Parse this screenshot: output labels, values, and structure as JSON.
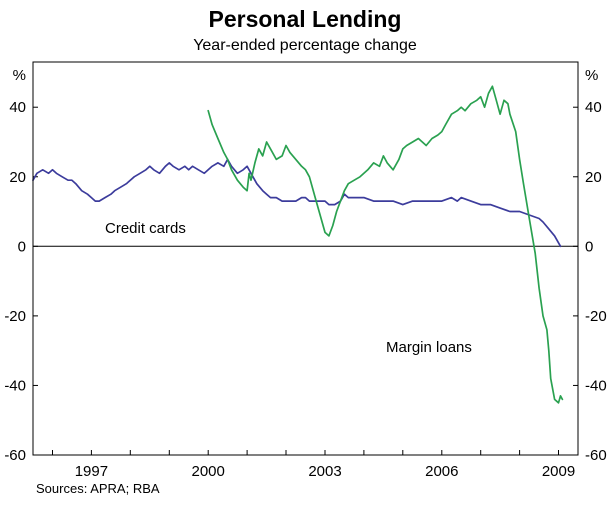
{
  "title": "Personal Lending",
  "subtitle": "Year-ended percentage change",
  "sources": "Sources: APRA; RBA",
  "chart_data": {
    "type": "line",
    "title": "Personal Lending",
    "subtitle": "Year-ended percentage change",
    "unit": "%",
    "xlim": [
      1995.5,
      2009.5
    ],
    "ylim": [
      -60,
      53
    ],
    "yticks": [
      -60,
      -40,
      -20,
      0,
      20,
      40
    ],
    "xticks": [
      1997,
      2000,
      2003,
      2006,
      2009
    ],
    "grid": false,
    "zero_line": true,
    "legend_position": "inline-annotations",
    "series": [
      {
        "id": "credit-cards",
        "label": "Credit cards",
        "color": "#3c3c9c",
        "points": [
          [
            1995.5,
            19
          ],
          [
            1995.6,
            21
          ],
          [
            1995.75,
            22
          ],
          [
            1995.9,
            21
          ],
          [
            1996.0,
            22
          ],
          [
            1996.1,
            21
          ],
          [
            1996.25,
            20
          ],
          [
            1996.4,
            19
          ],
          [
            1996.5,
            19
          ],
          [
            1996.6,
            18
          ],
          [
            1996.75,
            16
          ],
          [
            1996.9,
            15
          ],
          [
            1997.0,
            14
          ],
          [
            1997.1,
            13
          ],
          [
            1997.2,
            13
          ],
          [
            1997.35,
            14
          ],
          [
            1997.5,
            15
          ],
          [
            1997.6,
            16
          ],
          [
            1997.75,
            17
          ],
          [
            1997.9,
            18
          ],
          [
            1998.0,
            19
          ],
          [
            1998.1,
            20
          ],
          [
            1998.25,
            21
          ],
          [
            1998.4,
            22
          ],
          [
            1998.5,
            23
          ],
          [
            1998.6,
            22
          ],
          [
            1998.75,
            21
          ],
          [
            1998.9,
            23
          ],
          [
            1999.0,
            24
          ],
          [
            1999.1,
            23
          ],
          [
            1999.25,
            22
          ],
          [
            1999.4,
            23
          ],
          [
            1999.5,
            22
          ],
          [
            1999.6,
            23
          ],
          [
            1999.75,
            22
          ],
          [
            1999.9,
            21
          ],
          [
            2000.0,
            22
          ],
          [
            2000.1,
            23
          ],
          [
            2000.25,
            24
          ],
          [
            2000.4,
            23
          ],
          [
            2000.5,
            25
          ],
          [
            2000.6,
            23
          ],
          [
            2000.75,
            21
          ],
          [
            2000.9,
            22
          ],
          [
            2001.0,
            23
          ],
          [
            2001.1,
            21
          ],
          [
            2001.25,
            18
          ],
          [
            2001.4,
            16
          ],
          [
            2001.5,
            15
          ],
          [
            2001.6,
            14
          ],
          [
            2001.75,
            14
          ],
          [
            2001.9,
            13
          ],
          [
            2002.0,
            13
          ],
          [
            2002.25,
            13
          ],
          [
            2002.4,
            14
          ],
          [
            2002.5,
            14
          ],
          [
            2002.6,
            13
          ],
          [
            2002.75,
            13
          ],
          [
            2003.0,
            13
          ],
          [
            2003.1,
            12
          ],
          [
            2003.25,
            12
          ],
          [
            2003.4,
            13
          ],
          [
            2003.5,
            15
          ],
          [
            2003.6,
            14
          ],
          [
            2003.75,
            14
          ],
          [
            2004.0,
            14
          ],
          [
            2004.25,
            13
          ],
          [
            2004.5,
            13
          ],
          [
            2004.75,
            13
          ],
          [
            2005.0,
            12
          ],
          [
            2005.25,
            13
          ],
          [
            2005.5,
            13
          ],
          [
            2005.75,
            13
          ],
          [
            2006.0,
            13
          ],
          [
            2006.25,
            14
          ],
          [
            2006.4,
            13
          ],
          [
            2006.5,
            14
          ],
          [
            2006.75,
            13
          ],
          [
            2007.0,
            12
          ],
          [
            2007.25,
            12
          ],
          [
            2007.5,
            11
          ],
          [
            2007.75,
            10
          ],
          [
            2008.0,
            10
          ],
          [
            2008.25,
            9
          ],
          [
            2008.5,
            8
          ],
          [
            2008.6,
            7
          ],
          [
            2008.75,
            5
          ],
          [
            2008.9,
            3
          ],
          [
            2009.0,
            1
          ],
          [
            2009.05,
            0
          ]
        ]
      },
      {
        "id": "margin-loans",
        "label": "Margin loans",
        "color": "#2aa150",
        "points": [
          [
            2000.0,
            39
          ],
          [
            2000.1,
            35
          ],
          [
            2000.25,
            31
          ],
          [
            2000.4,
            27
          ],
          [
            2000.5,
            25
          ],
          [
            2000.6,
            22
          ],
          [
            2000.75,
            19
          ],
          [
            2000.9,
            17
          ],
          [
            2001.0,
            16
          ],
          [
            2001.05,
            21
          ],
          [
            2001.1,
            19
          ],
          [
            2001.2,
            24
          ],
          [
            2001.3,
            28
          ],
          [
            2001.4,
            26
          ],
          [
            2001.5,
            30
          ],
          [
            2001.6,
            28
          ],
          [
            2001.75,
            25
          ],
          [
            2001.9,
            26
          ],
          [
            2002.0,
            29
          ],
          [
            2002.1,
            27
          ],
          [
            2002.25,
            25
          ],
          [
            2002.4,
            23
          ],
          [
            2002.5,
            22
          ],
          [
            2002.6,
            20
          ],
          [
            2002.75,
            14
          ],
          [
            2002.9,
            8
          ],
          [
            2003.0,
            4
          ],
          [
            2003.1,
            3
          ],
          [
            2003.2,
            6
          ],
          [
            2003.3,
            10
          ],
          [
            2003.4,
            13
          ],
          [
            2003.5,
            16
          ],
          [
            2003.6,
            18
          ],
          [
            2003.75,
            19
          ],
          [
            2003.9,
            20
          ],
          [
            2004.0,
            21
          ],
          [
            2004.1,
            22
          ],
          [
            2004.25,
            24
          ],
          [
            2004.4,
            23
          ],
          [
            2004.5,
            26
          ],
          [
            2004.6,
            24
          ],
          [
            2004.75,
            22
          ],
          [
            2004.9,
            25
          ],
          [
            2005.0,
            28
          ],
          [
            2005.1,
            29
          ],
          [
            2005.25,
            30
          ],
          [
            2005.4,
            31
          ],
          [
            2005.5,
            30
          ],
          [
            2005.6,
            29
          ],
          [
            2005.75,
            31
          ],
          [
            2005.9,
            32
          ],
          [
            2006.0,
            33
          ],
          [
            2006.1,
            35
          ],
          [
            2006.25,
            38
          ],
          [
            2006.4,
            39
          ],
          [
            2006.5,
            40
          ],
          [
            2006.6,
            39
          ],
          [
            2006.75,
            41
          ],
          [
            2006.9,
            42
          ],
          [
            2007.0,
            43
          ],
          [
            2007.1,
            40
          ],
          [
            2007.2,
            44
          ],
          [
            2007.3,
            46
          ],
          [
            2007.4,
            42
          ],
          [
            2007.5,
            38
          ],
          [
            2007.6,
            42
          ],
          [
            2007.7,
            41
          ],
          [
            2007.75,
            38
          ],
          [
            2007.9,
            33
          ],
          [
            2008.0,
            25
          ],
          [
            2008.1,
            18
          ],
          [
            2008.25,
            8
          ],
          [
            2008.4,
            -2
          ],
          [
            2008.5,
            -12
          ],
          [
            2008.6,
            -20
          ],
          [
            2008.7,
            -24
          ],
          [
            2008.75,
            -30
          ],
          [
            2008.8,
            -38
          ],
          [
            2008.9,
            -44
          ],
          [
            2009.0,
            -45
          ],
          [
            2009.05,
            -43
          ],
          [
            2009.1,
            -44
          ]
        ]
      }
    ]
  }
}
